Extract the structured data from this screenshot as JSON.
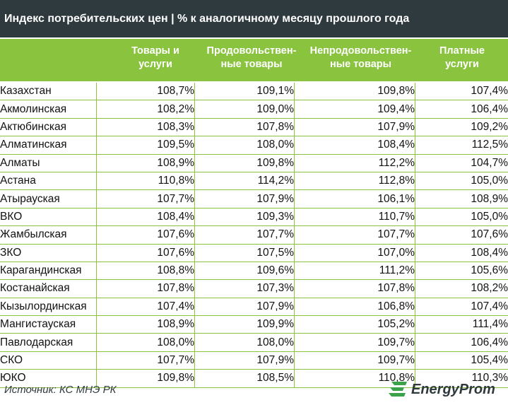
{
  "title": "Индекс потребительских цен | % к аналогичному месяцу прошлого года",
  "columns": [
    {
      "line1": "Товары и",
      "line2": "услуги"
    },
    {
      "line1": "Продовольствен-",
      "line2": "ные товары"
    },
    {
      "line1": "Непродовольствен-",
      "line2": "ные товары"
    },
    {
      "line1": "Платные",
      "line2": "услуги"
    }
  ],
  "rows": [
    {
      "region": "Казахстан",
      "v1": "108,7%",
      "v2": "109,1%",
      "v3": "109,8%",
      "v4": "107,4%"
    },
    {
      "region": "Акмолинская",
      "v1": "108,2%",
      "v2": "109,0%",
      "v3": "109,4%",
      "v4": "106,4%"
    },
    {
      "region": "Актюбинская",
      "v1": "108,3%",
      "v2": "107,8%",
      "v3": "107,9%",
      "v4": "109,2%"
    },
    {
      "region": "Алматинская",
      "v1": "109,5%",
      "v2": "108,0%",
      "v3": "108,4%",
      "v4": "112,5%"
    },
    {
      "region": "Алматы",
      "v1": "108,9%",
      "v2": "109,8%",
      "v3": "112,2%",
      "v4": "104,7%"
    },
    {
      "region": "Астана",
      "v1": "110,8%",
      "v2": "114,2%",
      "v3": "112,8%",
      "v4": "105,0%"
    },
    {
      "region": "Атырауская",
      "v1": "107,7%",
      "v2": "107,9%",
      "v3": "106,1%",
      "v4": "108,9%"
    },
    {
      "region": "ВКО",
      "v1": "108,4%",
      "v2": "109,3%",
      "v3": "110,7%",
      "v4": "105,0%"
    },
    {
      "region": "Жамбылская",
      "v1": "107,6%",
      "v2": "107,7%",
      "v3": "107,7%",
      "v4": "107,6%"
    },
    {
      "region": "ЗКО",
      "v1": "107,6%",
      "v2": "107,5%",
      "v3": "107,0%",
      "v4": "108,4%"
    },
    {
      "region": "Карагандинская",
      "v1": "108,8%",
      "v2": "109,6%",
      "v3": "111,2%",
      "v4": "105,6%"
    },
    {
      "region": "Костанайская",
      "v1": "107,8%",
      "v2": "107,3%",
      "v3": "107,8%",
      "v4": "108,2%"
    },
    {
      "region": "Кызылординская",
      "v1": "107,4%",
      "v2": "107,9%",
      "v3": "106,8%",
      "v4": "107,4%"
    },
    {
      "region": "Мангистауская",
      "v1": "108,9%",
      "v2": "109,9%",
      "v3": "105,2%",
      "v4": "111,4%"
    },
    {
      "region": "Павлодарская",
      "v1": "108,0%",
      "v2": "108,0%",
      "v3": "109,7%",
      "v4": "106,4%"
    },
    {
      "region": "СКО",
      "v1": "107,7%",
      "v2": "107,9%",
      "v3": "109,7%",
      "v4": "105,4%"
    },
    {
      "region": "ЮКО",
      "v1": "109,8%",
      "v2": "108,5%",
      "v3": "110,8%",
      "v4": "110,3%"
    }
  ],
  "source": "Источник: КС МНЭ РК",
  "logo_text": "EnergyProm",
  "colors": {
    "header_green": "#8ac43f",
    "title_bg": "#2f3a3f",
    "logo_green": "#3aa34a"
  }
}
